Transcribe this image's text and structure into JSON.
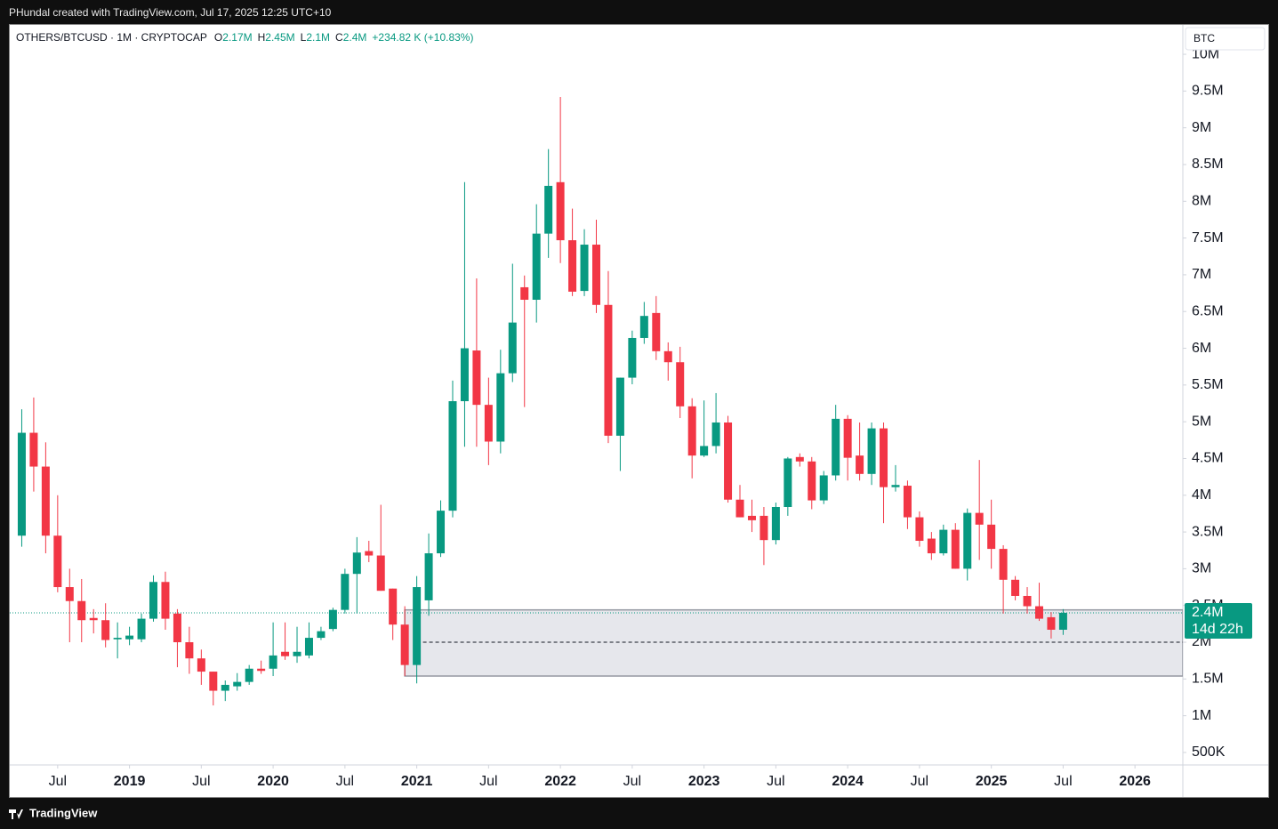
{
  "page": {
    "caption": "PHundal created with TradingView.com, Jul 17, 2025 12:25 UTC+10",
    "brand": "TradingView"
  },
  "chart_data": {
    "type": "candlestick",
    "symbol": "OTHERS/BTCUSD · 1M · CRYPTOCAP",
    "ohlc_legend": [
      {
        "key": "O",
        "value": "2.17M"
      },
      {
        "key": "H",
        "value": "2.45M"
      },
      {
        "key": "L",
        "value": "2.1M"
      },
      {
        "key": "C",
        "value": "2.4M"
      }
    ],
    "change": "+234.82 K (+10.83%)",
    "currency": "BTC",
    "up_color": "#089981",
    "down_color": "#f23645",
    "x": [
      "2018-04",
      "2018-05",
      "2018-06",
      "2018-07",
      "2018-08",
      "2018-09",
      "2018-10",
      "2018-11",
      "2018-12",
      "2019-01",
      "2019-02",
      "2019-03",
      "2019-04",
      "2019-05",
      "2019-06",
      "2019-07",
      "2019-08",
      "2019-09",
      "2019-10",
      "2019-11",
      "2019-12",
      "2020-01",
      "2020-02",
      "2020-03",
      "2020-04",
      "2020-05",
      "2020-06",
      "2020-07",
      "2020-08",
      "2020-09",
      "2020-10",
      "2020-11",
      "2020-12",
      "2021-01",
      "2021-02",
      "2021-03",
      "2021-04",
      "2021-05",
      "2021-06",
      "2021-07",
      "2021-08",
      "2021-09",
      "2021-10",
      "2021-11",
      "2021-12",
      "2022-01",
      "2022-02",
      "2022-03",
      "2022-04",
      "2022-05",
      "2022-06",
      "2022-07",
      "2022-08",
      "2022-09",
      "2022-10",
      "2022-11",
      "2022-12",
      "2023-01",
      "2023-02",
      "2023-03",
      "2023-04",
      "2023-05",
      "2023-06",
      "2023-07",
      "2023-08",
      "2023-09",
      "2023-10",
      "2023-11",
      "2023-12",
      "2024-01",
      "2024-02",
      "2024-03",
      "2024-04",
      "2024-05",
      "2024-06",
      "2024-07",
      "2024-08",
      "2024-09",
      "2024-10",
      "2024-11",
      "2024-12",
      "2025-01",
      "2025-02",
      "2025-03",
      "2025-04",
      "2025-05",
      "2025-06",
      "2025-07"
    ],
    "open": [
      3.45,
      4.85,
      4.39,
      3.45,
      2.75,
      2.56,
      2.33,
      2.3,
      2.04,
      2.04,
      2.04,
      2.32,
      2.82,
      2.39,
      2.0,
      1.78,
      1.6,
      1.34,
      1.4,
      1.46,
      1.64,
      1.64,
      1.87,
      1.81,
      1.82,
      2.06,
      2.18,
      2.44,
      2.93,
      3.24,
      3.18,
      2.73,
      2.24,
      1.69,
      2.57,
      3.21,
      3.79,
      5.28,
      5.97,
      5.23,
      4.73,
      5.66,
      6.83,
      6.66,
      7.56,
      8.26,
      7.47,
      6.78,
      7.41,
      6.59,
      4.81,
      5.6,
      6.14,
      6.48,
      5.96,
      5.81,
      5.21,
      4.54,
      4.67,
      4.99,
      3.94,
      3.72,
      3.72,
      3.39,
      3.84,
      4.52,
      4.46,
      3.93,
      4.27,
      5.04,
      4.54,
      4.29,
      4.91,
      4.11,
      4.13,
      3.7,
      3.41,
      3.21,
      3.53,
      3.0,
      3.76,
      3.6,
      3.27,
      2.85,
      2.63,
      2.49,
      2.34,
      2.17
    ],
    "high": [
      5.17,
      5.33,
      4.72,
      4.0,
      3.0,
      2.86,
      2.45,
      2.53,
      2.27,
      2.21,
      2.39,
      2.91,
      2.96,
      2.45,
      2.21,
      1.9,
      1.6,
      1.48,
      1.58,
      1.69,
      1.75,
      2.27,
      2.27,
      2.21,
      2.27,
      2.21,
      2.47,
      3.0,
      3.43,
      3.38,
      3.87,
      2.73,
      2.49,
      2.9,
      3.48,
      3.93,
      5.56,
      8.26,
      6.95,
      5.6,
      5.98,
      7.15,
      6.99,
      7.96,
      8.71,
      9.42,
      7.9,
      7.62,
      7.75,
      7.05,
      5.6,
      6.24,
      6.63,
      6.71,
      6.08,
      6.02,
      5.32,
      5.29,
      5.39,
      5.08,
      4.14,
      3.94,
      3.84,
      3.9,
      4.52,
      4.57,
      4.52,
      4.33,
      5.23,
      5.09,
      4.99,
      4.99,
      4.99,
      4.41,
      4.2,
      3.78,
      3.5,
      3.6,
      3.62,
      3.82,
      4.48,
      3.94,
      3.32,
      2.9,
      2.75,
      2.81,
      2.41,
      2.45
    ],
    "low": [
      3.3,
      4.05,
      3.21,
      2.68,
      2.0,
      2.0,
      2.12,
      1.93,
      1.78,
      1.96,
      2.0,
      2.28,
      2.17,
      1.66,
      1.57,
      1.42,
      1.14,
      1.2,
      1.34,
      1.42,
      1.57,
      1.54,
      1.76,
      1.72,
      1.78,
      2.03,
      2.15,
      2.39,
      2.39,
      3.09,
      2.7,
      2.03,
      1.54,
      1.44,
      2.36,
      3.16,
      3.7,
      4.66,
      4.66,
      4.41,
      4.57,
      5.54,
      5.2,
      6.35,
      7.23,
      7.16,
      6.71,
      6.71,
      6.48,
      4.71,
      4.33,
      5.51,
      6.06,
      5.84,
      5.56,
      5.05,
      4.23,
      4.52,
      4.57,
      3.9,
      3.7,
      3.5,
      3.05,
      3.33,
      3.72,
      4.39,
      3.81,
      3.88,
      4.2,
      4.2,
      4.2,
      4.14,
      3.62,
      4.05,
      3.54,
      3.3,
      3.12,
      3.18,
      3.0,
      2.84,
      3.12,
      3.0,
      2.39,
      2.57,
      2.39,
      2.29,
      2.05,
      2.1
    ],
    "close": [
      4.85,
      4.39,
      3.45,
      2.75,
      2.56,
      2.3,
      2.3,
      2.03,
      2.06,
      2.09,
      2.32,
      2.82,
      2.32,
      2.0,
      1.78,
      1.6,
      1.34,
      1.42,
      1.46,
      1.64,
      1.61,
      1.82,
      1.81,
      1.87,
      2.06,
      2.15,
      2.44,
      2.93,
      3.22,
      3.18,
      2.7,
      2.24,
      1.69,
      2.75,
      3.21,
      3.79,
      5.28,
      6.0,
      5.23,
      4.73,
      5.66,
      6.35,
      6.66,
      7.56,
      8.21,
      7.47,
      6.77,
      7.41,
      6.59,
      4.81,
      5.6,
      6.14,
      6.44,
      5.96,
      5.81,
      5.21,
      4.54,
      4.67,
      4.99,
      3.94,
      3.7,
      3.66,
      3.39,
      3.84,
      4.5,
      4.46,
      3.93,
      4.27,
      5.04,
      4.51,
      4.29,
      4.91,
      4.11,
      4.14,
      3.7,
      3.38,
      3.21,
      3.53,
      3.0,
      3.76,
      3.6,
      3.27,
      2.85,
      2.63,
      2.49,
      2.32,
      2.17,
      2.4
    ],
    "xlim": [
      "2018-03",
      "2026-05"
    ],
    "xticks": [
      {
        "value": "2018-07",
        "label": "Jul"
      },
      {
        "value": "2019-01",
        "label": "2019"
      },
      {
        "value": "2019-07",
        "label": "Jul"
      },
      {
        "value": "2020-01",
        "label": "2020"
      },
      {
        "value": "2020-07",
        "label": "Jul"
      },
      {
        "value": "2021-01",
        "label": "2021"
      },
      {
        "value": "2021-07",
        "label": "Jul"
      },
      {
        "value": "2022-01",
        "label": "2022"
      },
      {
        "value": "2022-07",
        "label": "Jul"
      },
      {
        "value": "2023-01",
        "label": "2023"
      },
      {
        "value": "2023-07",
        "label": "Jul"
      },
      {
        "value": "2024-01",
        "label": "2024"
      },
      {
        "value": "2024-07",
        "label": "Jul"
      },
      {
        "value": "2025-01",
        "label": "2025"
      },
      {
        "value": "2025-07",
        "label": "Jul"
      },
      {
        "value": "2026-01",
        "label": "2026"
      }
    ],
    "ylim": [
      0.33,
      10.4
    ],
    "yticks": [
      {
        "value": 0.5,
        "label": "500K"
      },
      {
        "value": 1,
        "label": "1M"
      },
      {
        "value": 1.5,
        "label": "1.5M"
      },
      {
        "value": 2,
        "label": "2M"
      },
      {
        "value": 2.5,
        "label": "2.5M"
      },
      {
        "value": 3,
        "label": "3M"
      },
      {
        "value": 3.5,
        "label": "3.5M"
      },
      {
        "value": 4,
        "label": "4M"
      },
      {
        "value": 4.5,
        "label": "4.5M"
      },
      {
        "value": 5,
        "label": "5M"
      },
      {
        "value": 5.5,
        "label": "5.5M"
      },
      {
        "value": 6,
        "label": "6M"
      },
      {
        "value": 6.5,
        "label": "6.5M"
      },
      {
        "value": 7,
        "label": "7M"
      },
      {
        "value": 7.5,
        "label": "7.5M"
      },
      {
        "value": 8,
        "label": "8M"
      },
      {
        "value": 8.5,
        "label": "8.5M"
      },
      {
        "value": 9,
        "label": "9M"
      },
      {
        "value": 9.5,
        "label": "9.5M"
      },
      {
        "value": 10,
        "label": "10M"
      }
    ],
    "zone": {
      "start": "2020-12",
      "top": 2.44,
      "bottom": 1.54
    },
    "level": {
      "start": "2021-01",
      "value": 2.0
    },
    "last_price": {
      "value": 2.4,
      "label": "2.4M"
    },
    "countdown": "14d 22h"
  }
}
